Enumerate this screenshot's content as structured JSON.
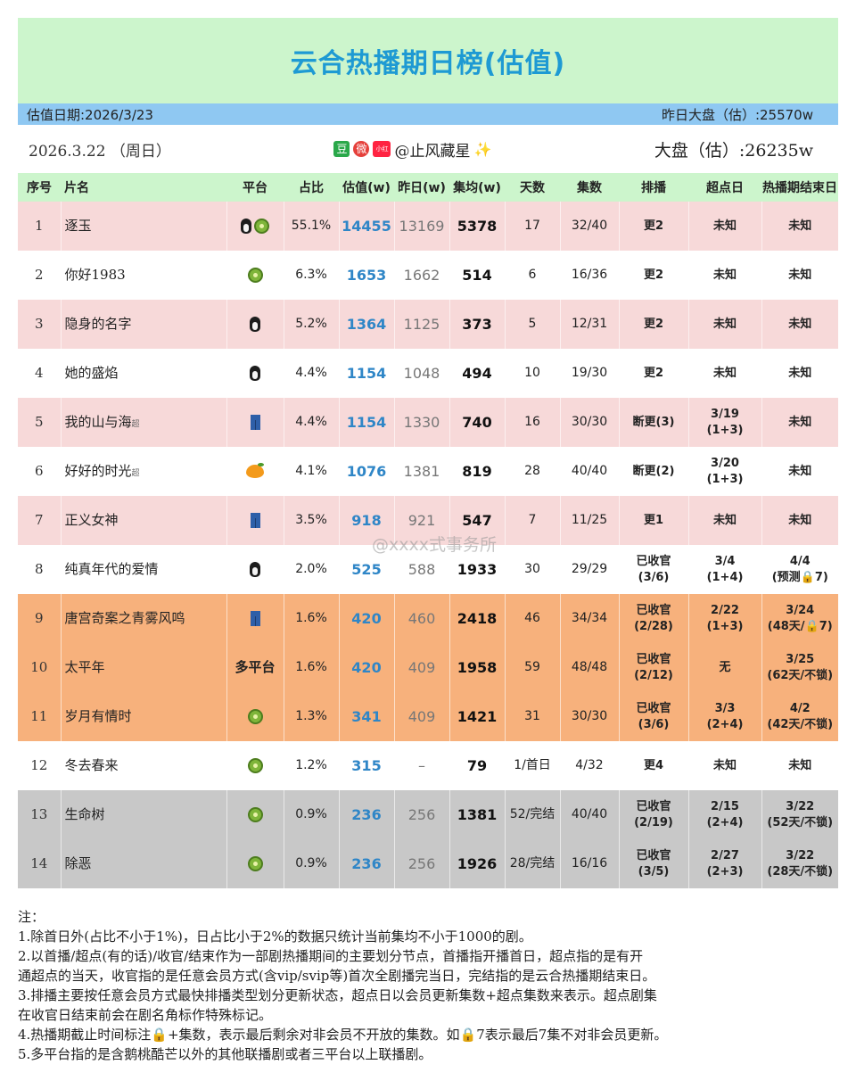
{
  "title": "云合热播期日榜(估值)",
  "info": {
    "date_label": "估值日期:2026/3/23",
    "yday_market": "昨日大盘（估）:25570w"
  },
  "sub": {
    "date": "2026.3.22 （周日）",
    "badge_dou": "豆",
    "badge_weibo": "微",
    "badge_xhs": "小红书",
    "author": "@止风藏星",
    "sparkle": "✨",
    "market": "大盘（估）:26235w"
  },
  "headers": [
    "序号",
    "片名",
    "平台",
    "占比",
    "估值(w)",
    "昨日(w)",
    "集均(w)",
    "天数",
    "集数",
    "排播",
    "超点日",
    "热播期结束日"
  ],
  "platform_icons": {
    "kiwi": "kiwi-icon",
    "penguin": "penguin-icon",
    "jeans": "jeans-icon",
    "mango": "mango-icon"
  },
  "colors": {
    "title_bg": "#ccf5cc",
    "title_text": "#1e9ad3",
    "info_bg": "#8fc8f2",
    "pink": "#f7d9d9",
    "orange": "#f7b17c",
    "gray": "#c8c8c8",
    "estimate_blue": "#2f86c7"
  },
  "rows": [
    {
      "rank": "1",
      "name": "逐玉",
      "sup": "",
      "platform_text": "",
      "icons": [
        "penguin",
        "kiwi"
      ],
      "share": "55.1%",
      "est": "14455",
      "yday": "13169",
      "avg": "5378",
      "days": "17",
      "eps": "32/40",
      "sched": "更2",
      "peak": "未知",
      "end": "未知",
      "color": "pink"
    },
    {
      "rank": "2",
      "name": "你好1983",
      "sup": "",
      "platform_text": "",
      "icons": [
        "kiwi"
      ],
      "share": "6.3%",
      "est": "1653",
      "yday": "1662",
      "avg": "514",
      "days": "6",
      "eps": "16/36",
      "sched": "更2",
      "peak": "未知",
      "end": "未知",
      "color": "white"
    },
    {
      "rank": "3",
      "name": "隐身的名字",
      "sup": "",
      "platform_text": "",
      "icons": [
        "penguin"
      ],
      "share": "5.2%",
      "est": "1364",
      "yday": "1125",
      "avg": "373",
      "days": "5",
      "eps": "12/31",
      "sched": "更2",
      "peak": "未知",
      "end": "未知",
      "color": "pink"
    },
    {
      "rank": "4",
      "name": "她的盛焰",
      "sup": "",
      "platform_text": "",
      "icons": [
        "penguin"
      ],
      "share": "4.4%",
      "est": "1154",
      "yday": "1048",
      "avg": "494",
      "days": "10",
      "eps": "19/30",
      "sched": "更2",
      "peak": "未知",
      "end": "未知",
      "color": "white"
    },
    {
      "rank": "5",
      "name": "我的山与海",
      "sup": "超",
      "platform_text": "",
      "icons": [
        "jeans"
      ],
      "share": "4.4%",
      "est": "1154",
      "yday": "1330",
      "avg": "740",
      "days": "16",
      "eps": "30/30",
      "sched": "断更(3)",
      "peak": "3/19\n(1+3)",
      "end": "未知",
      "color": "pink"
    },
    {
      "rank": "6",
      "name": "好好的时光",
      "sup": "超",
      "platform_text": "",
      "icons": [
        "mango"
      ],
      "share": "4.1%",
      "est": "1076",
      "yday": "1381",
      "avg": "819",
      "days": "28",
      "eps": "40/40",
      "sched": "断更(2)",
      "peak": "3/20\n(1+3)",
      "end": "未知",
      "color": "white"
    },
    {
      "rank": "7",
      "name": "正义女神",
      "sup": "",
      "platform_text": "",
      "icons": [
        "jeans"
      ],
      "share": "3.5%",
      "est": "918",
      "yday": "921",
      "avg": "547",
      "days": "7",
      "eps": "11/25",
      "sched": "更1",
      "peak": "未知",
      "end": "未知",
      "color": "pink"
    },
    {
      "rank": "8",
      "name": "纯真年代的爱情",
      "sup": "",
      "platform_text": "",
      "icons": [
        "penguin"
      ],
      "share": "2.0%",
      "est": "525",
      "yday": "588",
      "avg": "1933",
      "days": "30",
      "eps": "29/29",
      "sched": "已收官\n(3/6)",
      "peak": "3/4\n(1+4)",
      "end": "4/4\n(预测🔒7)",
      "color": "white"
    },
    {
      "rank": "9",
      "name": "唐宫奇案之青雾风鸣",
      "sup": "",
      "platform_text": "",
      "icons": [
        "jeans"
      ],
      "share": "1.6%",
      "est": "420",
      "yday": "460",
      "avg": "2418",
      "days": "46",
      "eps": "34/34",
      "sched": "已收官\n(2/28)",
      "peak": "2/22\n(1+3)",
      "end": "3/24\n(48天/🔒7)",
      "color": "orange"
    },
    {
      "rank": "10",
      "name": "太平年",
      "sup": "",
      "platform_text": "多平台",
      "icons": [],
      "share": "1.6%",
      "est": "420",
      "yday": "409",
      "avg": "1958",
      "days": "59",
      "eps": "48/48",
      "sched": "已收官\n(2/12)",
      "peak": "无",
      "end": "3/25\n(62天/不锁)",
      "color": "orange"
    },
    {
      "rank": "11",
      "name": "岁月有情时",
      "sup": "",
      "platform_text": "",
      "icons": [
        "kiwi"
      ],
      "share": "1.3%",
      "est": "341",
      "yday": "409",
      "avg": "1421",
      "days": "31",
      "eps": "30/30",
      "sched": "已收官\n(3/6)",
      "peak": "3/3\n(2+4)",
      "end": "4/2\n(42天/不锁)",
      "color": "orange"
    },
    {
      "rank": "12",
      "name": "冬去春来",
      "sup": "",
      "platform_text": "",
      "icons": [
        "kiwi"
      ],
      "share": "1.2%",
      "est": "315",
      "yday": "–",
      "avg": "79",
      "days": "1/首日",
      "eps": "4/32",
      "sched": "更4",
      "peak": "未知",
      "end": "未知",
      "color": "white"
    },
    {
      "rank": "13",
      "name": "生命树",
      "sup": "",
      "platform_text": "",
      "icons": [
        "kiwi"
      ],
      "share": "0.9%",
      "est": "236",
      "yday": "256",
      "avg": "1381",
      "days": "52/完结",
      "eps": "40/40",
      "sched": "已收官\n(2/19)",
      "peak": "2/15\n(2+4)",
      "end": "3/22\n(52天/不锁)",
      "color": "gray"
    },
    {
      "rank": "14",
      "name": "除恶",
      "sup": "",
      "platform_text": "",
      "icons": [
        "kiwi"
      ],
      "share": "0.9%",
      "est": "236",
      "yday": "256",
      "avg": "1926",
      "days": "28/完结",
      "eps": "16/16",
      "sched": "已收官\n(3/5)",
      "peak": "2/27\n(2+3)",
      "end": "3/22\n(28天/不锁)",
      "color": "gray"
    }
  ],
  "watermark": "@xxxx式事务所",
  "notes": [
    "注：",
    "1.除首日外(占比不小于1%)，日占比小于2%的数据只统计当前集均不小于1000的剧。",
    "2.以首播/超点(有的话)/收官/结束作为一部剧热播期间的主要划分节点，首播指开播首日，超点指的是有开",
    "通超点的当天，收官指的是任意会员方式(含vip/svip等)首次全剧播完当日，完结指的是云合热播期结束日。",
    "3.排播主要按任意会员方式最快排播类型划分更新状态，超点日以会员更新集数+超点集数来表示。超点剧集",
    "在收官日结束前会在剧名角标作特殊标记。",
    "4.热播期截止时间标注🔒+集数，表示最后剩余对非会员不开放的集数。如🔒7表示最后7集不对非会员更新。",
    "5.多平台指的是含鹅桃酷芒以外的其他联播剧或者三平台以上联播剧。"
  ]
}
